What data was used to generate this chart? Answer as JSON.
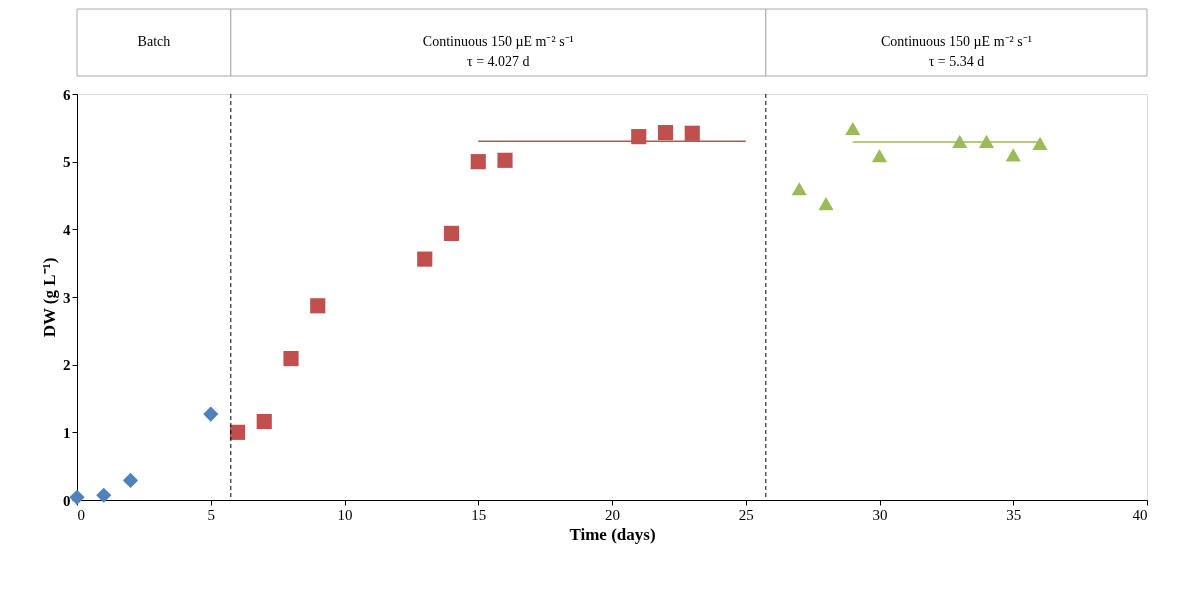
{
  "chart_data": {
    "type": "scatter",
    "xlabel": "Time (days)",
    "ylabel": "DW (g L⁻¹)",
    "xlim": [
      0,
      40
    ],
    "xticks": [
      0,
      5,
      10,
      15,
      20,
      25,
      30,
      35,
      40
    ],
    "ylim": [
      0,
      6
    ],
    "yticks": [
      0,
      1,
      2,
      3,
      4,
      5,
      6
    ],
    "grid": false,
    "series": [
      {
        "color": "#4f81bd",
        "marker": "diamond",
        "x": [
          0,
          1,
          2,
          5
        ],
        "values": [
          0.04,
          0.07,
          0.29,
          1.27
        ]
      },
      {
        "color": "#c0504d",
        "marker": "square",
        "x": [
          6,
          7,
          8,
          9,
          13,
          14,
          15,
          16,
          21,
          22,
          23
        ],
        "values": [
          1.0,
          1.16,
          2.09,
          2.87,
          3.56,
          3.94,
          5.0,
          5.02,
          5.37,
          5.43,
          5.42
        ]
      },
      {
        "color": "#9bbb59",
        "marker": "triangle",
        "x": [
          27,
          28,
          29,
          30,
          33,
          34,
          35,
          36
        ],
        "values": [
          4.6,
          4.38,
          5.49,
          5.09,
          5.3,
          5.3,
          5.1,
          5.27
        ]
      },
      {
        "type": "line",
        "color": "#c0504d",
        "x": [
          15,
          25
        ],
        "values": [
          5.3,
          5.3
        ]
      },
      {
        "type": "line",
        "color": "#9bbb59",
        "x": [
          29,
          36
        ],
        "values": [
          5.29,
          5.29
        ]
      }
    ],
    "ref_lines": [
      {
        "axis": "x",
        "value": 5.75,
        "line_style": "dashed",
        "color": "#000000"
      },
      {
        "axis": "x",
        "value": 25.75,
        "line_style": "dashed",
        "color": "#000000"
      }
    ],
    "annotations": [
      "Batch",
      "Continuous  150 µE m⁻² s⁻¹\nτ = 4.027  d",
      "Continuous  150 µE m⁻² s⁻¹\nτ = 5.34  d"
    ]
  }
}
